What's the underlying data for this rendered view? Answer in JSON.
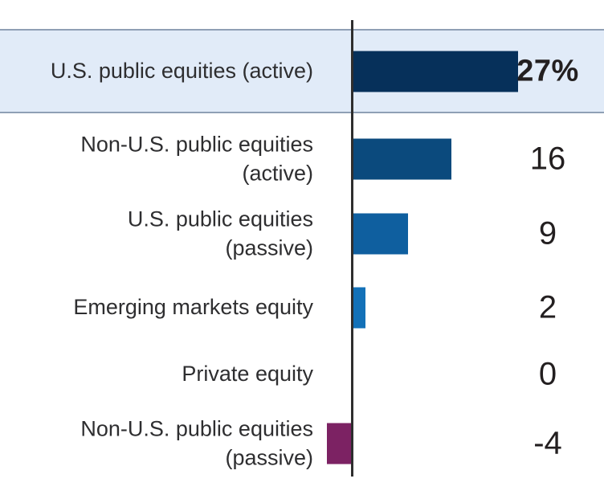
{
  "chart_data": {
    "type": "bar",
    "orientation": "horizontal",
    "title": "",
    "xlabel": "",
    "ylabel": "",
    "xlim": [
      -4,
      27
    ],
    "grid": false,
    "legend": false,
    "axis_color": "#2e2e2e",
    "highlight_row_background": "#e1ebf8",
    "highlight_row_border": "#8fa0b5",
    "categories": [
      "U.S. public equities (active)",
      "Non-U.S. public equities (active)",
      "U.S. public equities (passive)",
      "Emerging markets equity",
      "Private equity",
      "Non-U.S. public equities (passive)"
    ],
    "values": [
      27,
      16,
      9,
      2,
      0,
      -4
    ],
    "rows": [
      {
        "label": "U.S. public equities (active)",
        "value": 27,
        "value_label": "27%",
        "color": "#06305a",
        "highlighted": true
      },
      {
        "label": "Non-U.S. public equities\n(active)",
        "value": 16,
        "value_label": "16",
        "color": "#0b4a7d",
        "highlighted": false
      },
      {
        "label": "U.S. public equities\n(passive)",
        "value": 9,
        "value_label": "9",
        "color": "#0f5f9f",
        "highlighted": false
      },
      {
        "label": "Emerging markets equity",
        "value": 2,
        "value_label": "2",
        "color": "#1371b8",
        "highlighted": false
      },
      {
        "label": "Private equity",
        "value": 0,
        "value_label": "0",
        "color": "#1371b8",
        "highlighted": false
      },
      {
        "label": "Non-U.S. public equities\n(passive)",
        "value": -4,
        "value_label": "-4",
        "color": "#7c2263",
        "highlighted": false
      }
    ]
  }
}
